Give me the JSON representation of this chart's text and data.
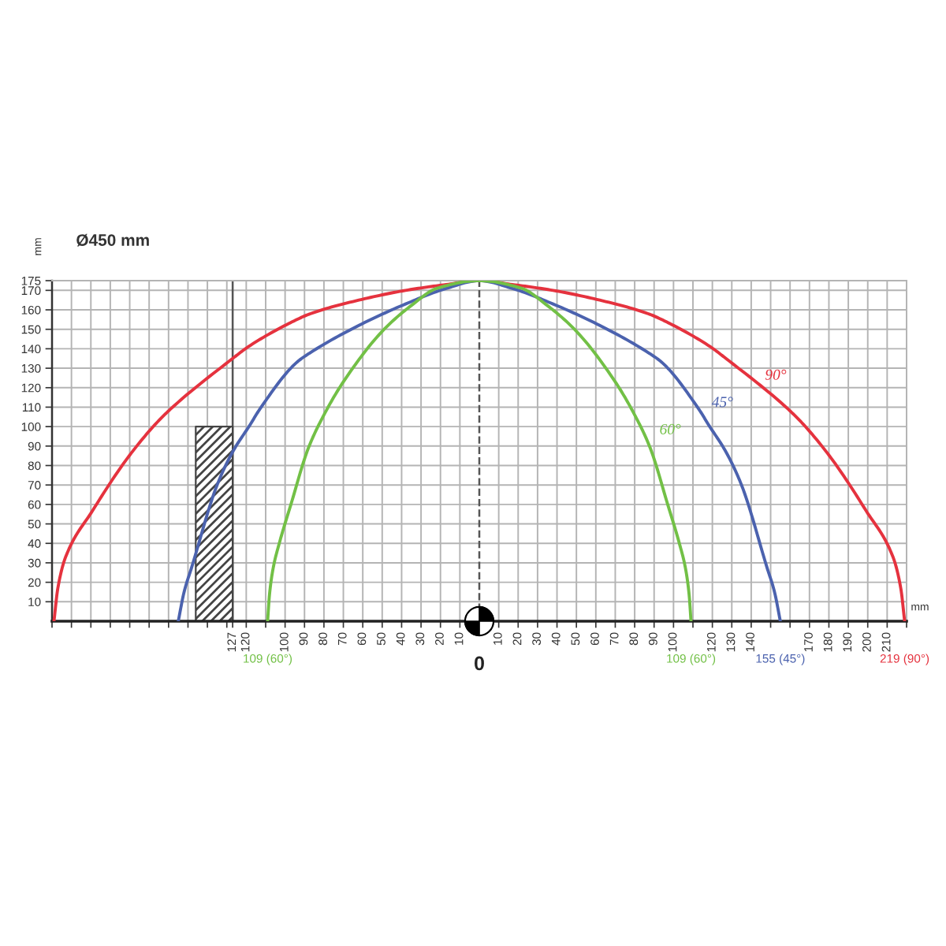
{
  "chart_data": {
    "type": "line",
    "title": "Ø450 mm",
    "xlabel": "mm",
    "ylabel": "mm",
    "xlim": [
      -220,
      220
    ],
    "ylim": [
      0,
      175
    ],
    "xticks": [
      {
        "value": -220,
        "label": null
      },
      {
        "value": -210,
        "label": null
      },
      {
        "value": -200,
        "label": null
      },
      {
        "value": -190,
        "label": null
      },
      {
        "value": -180,
        "label": null
      },
      {
        "value": -170,
        "label": null
      },
      {
        "value": -160,
        "label": null
      },
      {
        "value": -150,
        "label": null
      },
      {
        "value": -140,
        "label": null
      },
      {
        "value": -130,
        "label": null
      },
      {
        "value": -127,
        "label": "127"
      },
      {
        "value": -120,
        "label": "120"
      },
      {
        "value": -110,
        "label": null
      },
      {
        "value": -100,
        "label": "100"
      },
      {
        "value": -90,
        "label": "90"
      },
      {
        "value": -80,
        "label": "80"
      },
      {
        "value": -70,
        "label": "70"
      },
      {
        "value": -60,
        "label": "60"
      },
      {
        "value": -50,
        "label": "50"
      },
      {
        "value": -40,
        "label": "40"
      },
      {
        "value": -30,
        "label": "30"
      },
      {
        "value": -20,
        "label": "20"
      },
      {
        "value": -10,
        "label": "10"
      },
      10,
      20,
      30,
      40,
      50,
      60,
      70,
      80,
      90,
      100,
      {
        "value": 110,
        "label": null
      },
      120,
      130,
      140,
      {
        "value": 150,
        "label": null
      },
      {
        "value": 160,
        "label": null
      },
      170,
      180,
      190,
      200,
      210,
      {
        "value": 220,
        "label": null
      }
    ],
    "yticks": [
      10,
      20,
      30,
      40,
      50,
      60,
      70,
      80,
      90,
      100,
      110,
      120,
      130,
      140,
      150,
      160,
      170,
      175
    ],
    "grid": true,
    "ref_lines": [
      {
        "axis": "x",
        "value": 0,
        "line_style": "dashed",
        "color": "#555555"
      },
      {
        "axis": "x",
        "value": -127,
        "line_style": "solid",
        "color": "#555555"
      }
    ],
    "annotations": [
      {
        "text": "109 (60°)",
        "x": -109,
        "y": 0
      },
      {
        "text": "0",
        "x": 0,
        "y": 0
      },
      {
        "text": "109 (60°)",
        "x": 109,
        "y": 0
      },
      {
        "text": "155 (45°)",
        "x": 155,
        "y": 0
      },
      {
        "text": "219 (90°)",
        "x": 219,
        "y": 0
      }
    ],
    "series": [
      {
        "name": "90°",
        "color": "#e5323e",
        "x": [
          -219,
          -217,
          -213,
          -199,
          -181,
          -167,
          -159,
          -127,
          -119,
          -98,
          -87,
          -62,
          -38,
          -17,
          0,
          17,
          38,
          62,
          87,
          98,
          119,
          127,
          159,
          167,
          181,
          199,
          213,
          217,
          219
        ],
        "values": [
          0,
          17,
          33,
          57,
          84,
          101,
          109,
          135,
          141,
          153,
          158,
          165,
          170,
          173,
          175,
          173,
          170,
          165,
          158,
          153,
          141,
          135,
          109,
          101,
          84,
          57,
          33,
          17,
          0
        ]
      },
      {
        "name": "45°",
        "color": "#4b62ae",
        "x": [
          -155,
          -152,
          -148,
          -135,
          -127,
          -118,
          -113,
          -94,
          -87,
          -62,
          -38,
          -17,
          0,
          17,
          38,
          62,
          87,
          94,
          113,
          118,
          127,
          135,
          148,
          152,
          155
        ],
        "values": [
          0,
          15,
          28,
          70,
          87,
          101,
          109,
          133,
          138,
          152,
          163,
          171,
          175,
          171,
          163,
          152,
          138,
          133,
          109,
          101,
          87,
          70,
          28,
          15,
          0
        ]
      },
      {
        "name": "60°",
        "color": "#72c046",
        "x": [
          -109,
          -108,
          -106,
          -103,
          -97,
          -88,
          -80,
          -70,
          -49,
          -34,
          -22,
          0,
          22,
          34,
          49,
          70,
          80,
          88,
          97,
          103,
          106,
          108,
          109
        ],
        "values": [
          0,
          14,
          28,
          40,
          60,
          89,
          106,
          123,
          150,
          163,
          171,
          175,
          171,
          163,
          150,
          123,
          106,
          89,
          60,
          40,
          28,
          14,
          0
        ]
      },
      {
        "type": "area",
        "color": "#444444",
        "x": [
          -146,
          -127
        ],
        "values": [
          100,
          100
        ]
      }
    ]
  }
}
